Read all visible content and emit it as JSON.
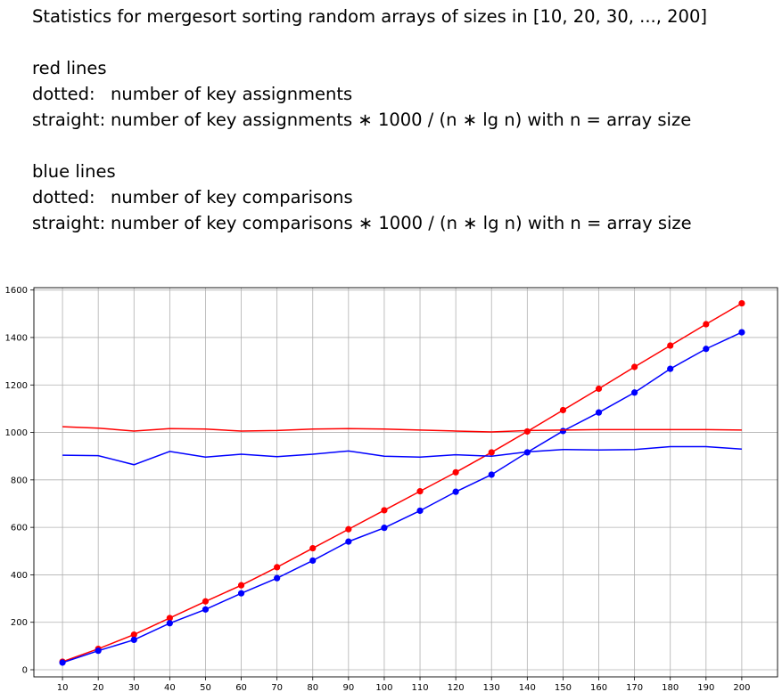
{
  "description": {
    "title": "Statistics for mergesort sorting random arrays of sizes in [10, 20, 30, ..., 200]",
    "red_heading": "red lines",
    "red_dotted_label": "dotted:",
    "red_dotted_text": "number of key assignments",
    "red_straight_label": "straight:",
    "red_straight_text": "number of key assignments ∗ 1000 / (n ∗ lg n) with n = array size",
    "blue_heading": "blue lines",
    "blue_dotted_label": "dotted:",
    "blue_dotted_text": "number of key comparisons",
    "blue_straight_label": "straight:",
    "blue_straight_text": "number of key comparisons ∗ 1000 / (n ∗ lg n) with n = array size"
  },
  "chart_data": {
    "type": "line",
    "x": [
      10,
      20,
      30,
      40,
      50,
      60,
      70,
      80,
      90,
      100,
      110,
      120,
      130,
      140,
      150,
      160,
      170,
      180,
      190,
      200
    ],
    "xticks": [
      10,
      20,
      30,
      40,
      50,
      60,
      70,
      80,
      90,
      100,
      110,
      120,
      130,
      140,
      150,
      160,
      170,
      180,
      190,
      200
    ],
    "yticks": [
      0,
      200,
      400,
      600,
      800,
      1000,
      1200,
      1400,
      1600
    ],
    "xlim": [
      2,
      210
    ],
    "ylim": [
      -30,
      1610
    ],
    "grid": true,
    "series": [
      {
        "color": "#ff0000",
        "markers": true,
        "values": [
          34,
          88,
          148,
          218,
          288,
          356,
          432,
          512,
          592,
          672,
          752,
          832,
          916,
          1004,
          1094,
          1184,
          1276,
          1366,
          1456,
          1544
        ]
      },
      {
        "color": "#0000ff",
        "markers": true,
        "values": [
          30,
          80,
          126,
          196,
          254,
          322,
          386,
          460,
          540,
          598,
          670,
          750,
          822,
          916,
          1006,
          1084,
          1168,
          1268,
          1352,
          1422
        ]
      },
      {
        "color": "#ff0000",
        "markers": false,
        "values": [
          1024,
          1018,
          1006,
          1016,
          1014,
          1006,
          1008,
          1014,
          1016,
          1014,
          1010,
          1006,
          1002,
          1008,
          1010,
          1012,
          1012,
          1012,
          1012,
          1010
        ]
      },
      {
        "color": "#0000ff",
        "markers": false,
        "values": [
          904,
          902,
          864,
          920,
          896,
          908,
          898,
          908,
          922,
          900,
          896,
          906,
          900,
          918,
          928,
          926,
          928,
          940,
          940,
          930
        ]
      }
    ]
  }
}
